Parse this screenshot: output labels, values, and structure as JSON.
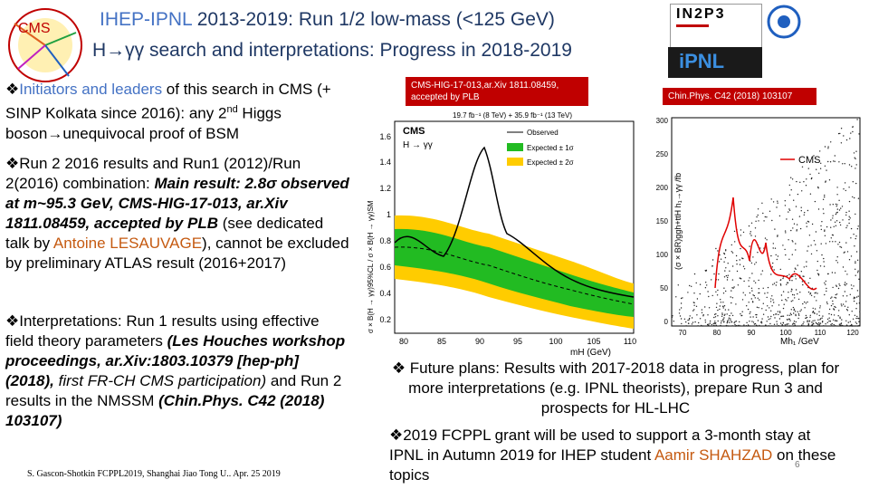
{
  "header": {
    "title_line1_prefix": "IHEP-IPNL",
    "title_line1_rest": " 2013-2019: Run 1/2 low-mass (<125 GeV)",
    "title_line2": "H→γγ search and interpretations: Progress in 2018-2019"
  },
  "logos": {
    "cms": "CMS",
    "in2p3": "IN2P3",
    "ipnl": "iPNL"
  },
  "left": {
    "b1_a": "Initiators and leaders",
    "b1_b": " of this search in CMS (+ SINP Kolkata since 2016): any 2",
    "b1_sup": "nd",
    "b1_c": " Higgs boson",
    "b1_arrow": "→",
    "b1_d": "unequivocal proof of BSM",
    "b2_a": "Run 2 2016 results and Run1 (2012)/Run 2(2016) combination: ",
    "b2_b": "Main result: 2.8σ observed at m~95.3 GeV, CMS-HIG-17-013, ar.Xiv 1811.08459, accepted by PLB",
    "b2_c": " (see dedicated talk by ",
    "b2_d": "Antoine LESAUVAGE",
    "b2_e": "), cannot be excluded by preliminary ATLAS result (2016+2017)",
    "b3_a": "Interpretations: Run 1 results using effective field theory parameters ",
    "b3_b": "(Les Houches workshop proceedings, ar.Xiv:1803.10379 [hep-ph] (2018),",
    "b3_c": " first FR-CH CMS participation)",
    "b3_d": " and Run 2 results in the NMSSM ",
    "b3_e": "(Chin.Phys. C42 (2018) 103107)"
  },
  "footer": "S. Gascon-Shotkin FCPPL2019, Shanghai Jiao Tong U.. Apr. 25 2019",
  "tags": {
    "left": "CMS-HIG-17-013,ar.Xiv 1811.08459, accepted by PLB",
    "right": "Chin.Phys. C42 (2018) 103107"
  },
  "plot1": {
    "lumi": "19.7 fb⁻¹ (8 TeV) + 35.9 fb⁻¹ (13 TeV)",
    "cms": "CMS",
    "channel": "H → γγ",
    "legend": [
      "Observed",
      "Expected ± 1σ",
      "Expected ± 2σ"
    ],
    "ylabel": "σ × B(H → γγ)95%CL / σ × B(H → γγ)SM",
    "xlabel": "mH (GeV)",
    "yticks": [
      "1.6",
      "1.4",
      "1.2",
      "1",
      "0.8",
      "0.6",
      "0.4",
      "0.2"
    ],
    "xticks": [
      "80",
      "85",
      "90",
      "95",
      "100",
      "105",
      "110"
    ]
  },
  "plot2": {
    "legend": "CMS",
    "ylabel": "(σ × BR)ggh+ttH h₁→γγ /fb",
    "xlabel": "Mh₁ /GeV",
    "yticks": [
      "300",
      "250",
      "200",
      "150",
      "100",
      "50",
      "0"
    ],
    "xticks": [
      "70",
      "80",
      "90",
      "100",
      "110",
      "120"
    ]
  },
  "right": {
    "b4_a": " Future plans:  Results with 2017-2018 data in progress, plan for more interpretations (e.g. IPNL theorists), prepare Run 3 and prospects for HL-LHC",
    "b5_a": "2019 FCPPL grant will be used to support a 3-month stay at IPNL in Autumn 2019 for IHEP student ",
    "b5_b": "Aamir SHAHZAD",
    "b5_c": "  on these topics"
  },
  "page_number": "6",
  "colors": {
    "title": "#1f3864",
    "accent": "#4472c4",
    "orange": "#c55a11",
    "red": "#c00000"
  }
}
